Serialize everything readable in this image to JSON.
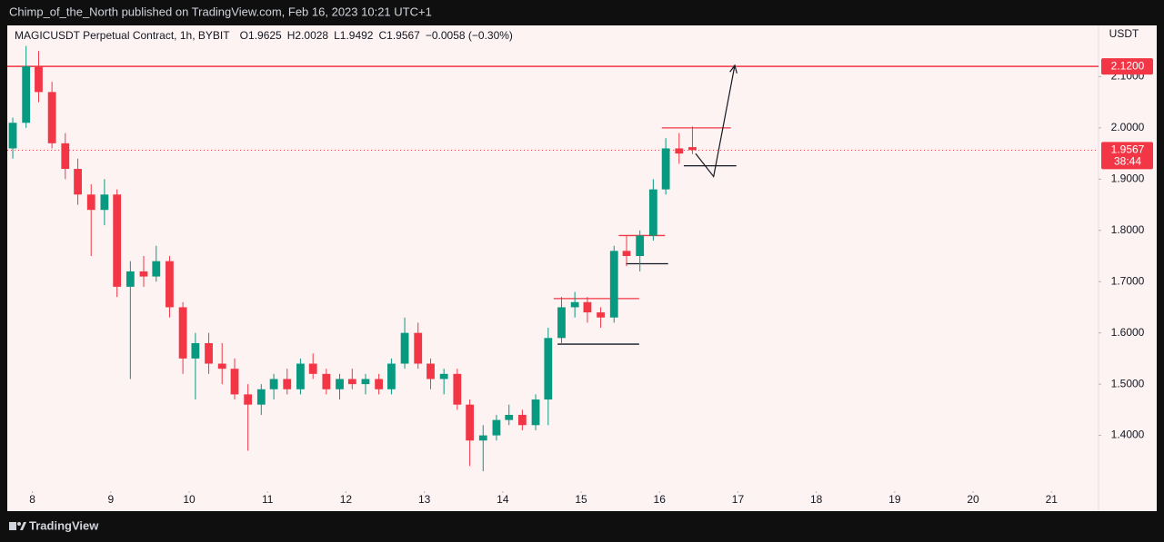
{
  "header": {
    "text": "Chimp_of_the_North published on TradingView.com, Feb 16, 2023 10:21 UTC+1"
  },
  "footer": {
    "text": "TradingView"
  },
  "chart_data": {
    "type": "candlestick",
    "title": "MAGICUSDT Perpetual Contract, 1h, BYBIT",
    "ohlc_legend": [
      {
        "label": "O",
        "value": 1.9625
      },
      {
        "label": "H",
        "value": 2.0028
      },
      {
        "label": "L",
        "value": 1.9492
      },
      {
        "label": "C",
        "value": 1.9567
      }
    ],
    "change": "−0.0058 (−0.30%)",
    "y_axis_label": "USDT",
    "x": [
      7.75,
      7.92,
      8.08,
      8.25,
      8.42,
      8.58,
      8.75,
      8.92,
      9.08,
      9.25,
      9.42,
      9.58,
      9.75,
      9.92,
      10.08,
      10.25,
      10.42,
      10.58,
      10.75,
      10.92,
      11.08,
      11.25,
      11.42,
      11.58,
      11.75,
      11.92,
      12.08,
      12.25,
      12.42,
      12.58,
      12.75,
      12.92,
      13.08,
      13.25,
      13.42,
      13.58,
      13.75,
      13.92,
      14.08,
      14.25,
      14.42,
      14.58,
      14.75,
      14.92,
      15.08,
      15.25,
      15.42,
      15.58,
      15.75,
      15.92,
      16.08,
      16.25,
      16.42
    ],
    "open": [
      1.96,
      2.01,
      2.12,
      2.07,
      1.97,
      1.92,
      1.87,
      1.84,
      1.87,
      1.69,
      1.72,
      1.71,
      1.74,
      1.65,
      1.55,
      1.58,
      1.54,
      1.53,
      1.48,
      1.46,
      1.49,
      1.51,
      1.49,
      1.54,
      1.52,
      1.49,
      1.51,
      1.5,
      1.51,
      1.49,
      1.54,
      1.6,
      1.54,
      1.51,
      1.52,
      1.46,
      1.39,
      1.4,
      1.43,
      1.44,
      1.42,
      1.47,
      1.59,
      1.65,
      1.66,
      1.64,
      1.63,
      1.76,
      1.75,
      1.79,
      1.88,
      1.96,
      1.9625
    ],
    "high": [
      2.02,
      2.16,
      2.15,
      2.09,
      1.99,
      1.94,
      1.89,
      1.9,
      1.88,
      1.74,
      1.75,
      1.77,
      1.75,
      1.66,
      1.6,
      1.6,
      1.58,
      1.55,
      1.5,
      1.5,
      1.52,
      1.53,
      1.55,
      1.56,
      1.53,
      1.52,
      1.53,
      1.52,
      1.52,
      1.55,
      1.63,
      1.62,
      1.55,
      1.53,
      1.53,
      1.47,
      1.42,
      1.44,
      1.46,
      1.45,
      1.48,
      1.61,
      1.67,
      1.68,
      1.67,
      1.65,
      1.77,
      1.79,
      1.8,
      1.9,
      1.98,
      1.99,
      2.0028
    ],
    "low": [
      1.94,
      2.0,
      2.05,
      1.96,
      1.9,
      1.85,
      1.75,
      1.81,
      1.67,
      1.51,
      1.69,
      1.7,
      1.63,
      1.52,
      1.47,
      1.52,
      1.5,
      1.47,
      1.37,
      1.44,
      1.47,
      1.48,
      1.48,
      1.51,
      1.48,
      1.47,
      1.49,
      1.48,
      1.48,
      1.48,
      1.53,
      1.53,
      1.49,
      1.48,
      1.45,
      1.34,
      1.33,
      1.39,
      1.42,
      1.41,
      1.41,
      1.42,
      1.58,
      1.63,
      1.62,
      1.61,
      1.62,
      1.73,
      1.72,
      1.78,
      1.87,
      1.93,
      1.9492
    ],
    "close": [
      2.01,
      2.12,
      2.07,
      1.97,
      1.92,
      1.87,
      1.84,
      1.87,
      1.69,
      1.72,
      1.71,
      1.74,
      1.65,
      1.55,
      1.58,
      1.54,
      1.53,
      1.48,
      1.46,
      1.49,
      1.51,
      1.49,
      1.54,
      1.52,
      1.49,
      1.51,
      1.5,
      1.51,
      1.49,
      1.54,
      1.6,
      1.54,
      1.51,
      1.52,
      1.46,
      1.39,
      1.4,
      1.43,
      1.44,
      1.42,
      1.47,
      1.59,
      1.65,
      1.66,
      1.64,
      1.63,
      1.76,
      1.75,
      1.79,
      1.88,
      1.96,
      1.95,
      1.9567
    ],
    "up_color": "#089981",
    "down_color": "#f23645",
    "xlim": [
      7.68,
      21.6
    ],
    "xticks": [
      8,
      9,
      10,
      11,
      12,
      13,
      14,
      15,
      16,
      17,
      18,
      19,
      20,
      21
    ],
    "ylim": [
      1.3,
      2.2
    ],
    "yticks": [
      {
        "value": 1.4,
        "label": "1.4000"
      },
      {
        "value": 1.5,
        "label": "1.5000"
      },
      {
        "value": 1.6,
        "label": "1.6000"
      },
      {
        "value": 1.7,
        "label": "1.7000"
      },
      {
        "value": 1.8,
        "label": "1.8000"
      },
      {
        "value": 1.9,
        "label": "1.9000"
      },
      {
        "value": 2.0,
        "label": "2.0000"
      },
      {
        "value": 2.1,
        "label": "2.1000"
      }
    ],
    "grid": false,
    "horizontal_lines": [
      {
        "value": 2.12,
        "label": "2.1200",
        "color": "#f23645"
      }
    ],
    "last_price": {
      "value": 1.9567,
      "label": "1.9567",
      "countdown": "38:44",
      "color": "#f23645"
    },
    "drawings": [
      {
        "x": [
          14.7,
          15.74
        ],
        "y": [
          1.578,
          1.578
        ],
        "color": "#131722"
      },
      {
        "x": [
          14.65,
          15.74
        ],
        "y": [
          1.667,
          1.667
        ],
        "color": "#f23645"
      },
      {
        "x": [
          15.48,
          16.07
        ],
        "y": [
          1.79,
          1.79
        ],
        "color": "#f23645"
      },
      {
        "x": [
          15.57,
          16.11
        ],
        "y": [
          1.735,
          1.735
        ],
        "color": "#131722"
      },
      {
        "x": [
          16.03,
          16.91
        ],
        "y": [
          2.0,
          2.0
        ],
        "color": "#f23645"
      },
      {
        "x": [
          16.31,
          16.98
        ],
        "y": [
          1.926,
          1.926
        ],
        "color": "#131722"
      }
    ],
    "arrow": {
      "x": [
        16.46,
        16.69,
        16.96
      ],
      "y": [
        1.95,
        1.905,
        2.122
      ],
      "color": "#131722"
    }
  }
}
